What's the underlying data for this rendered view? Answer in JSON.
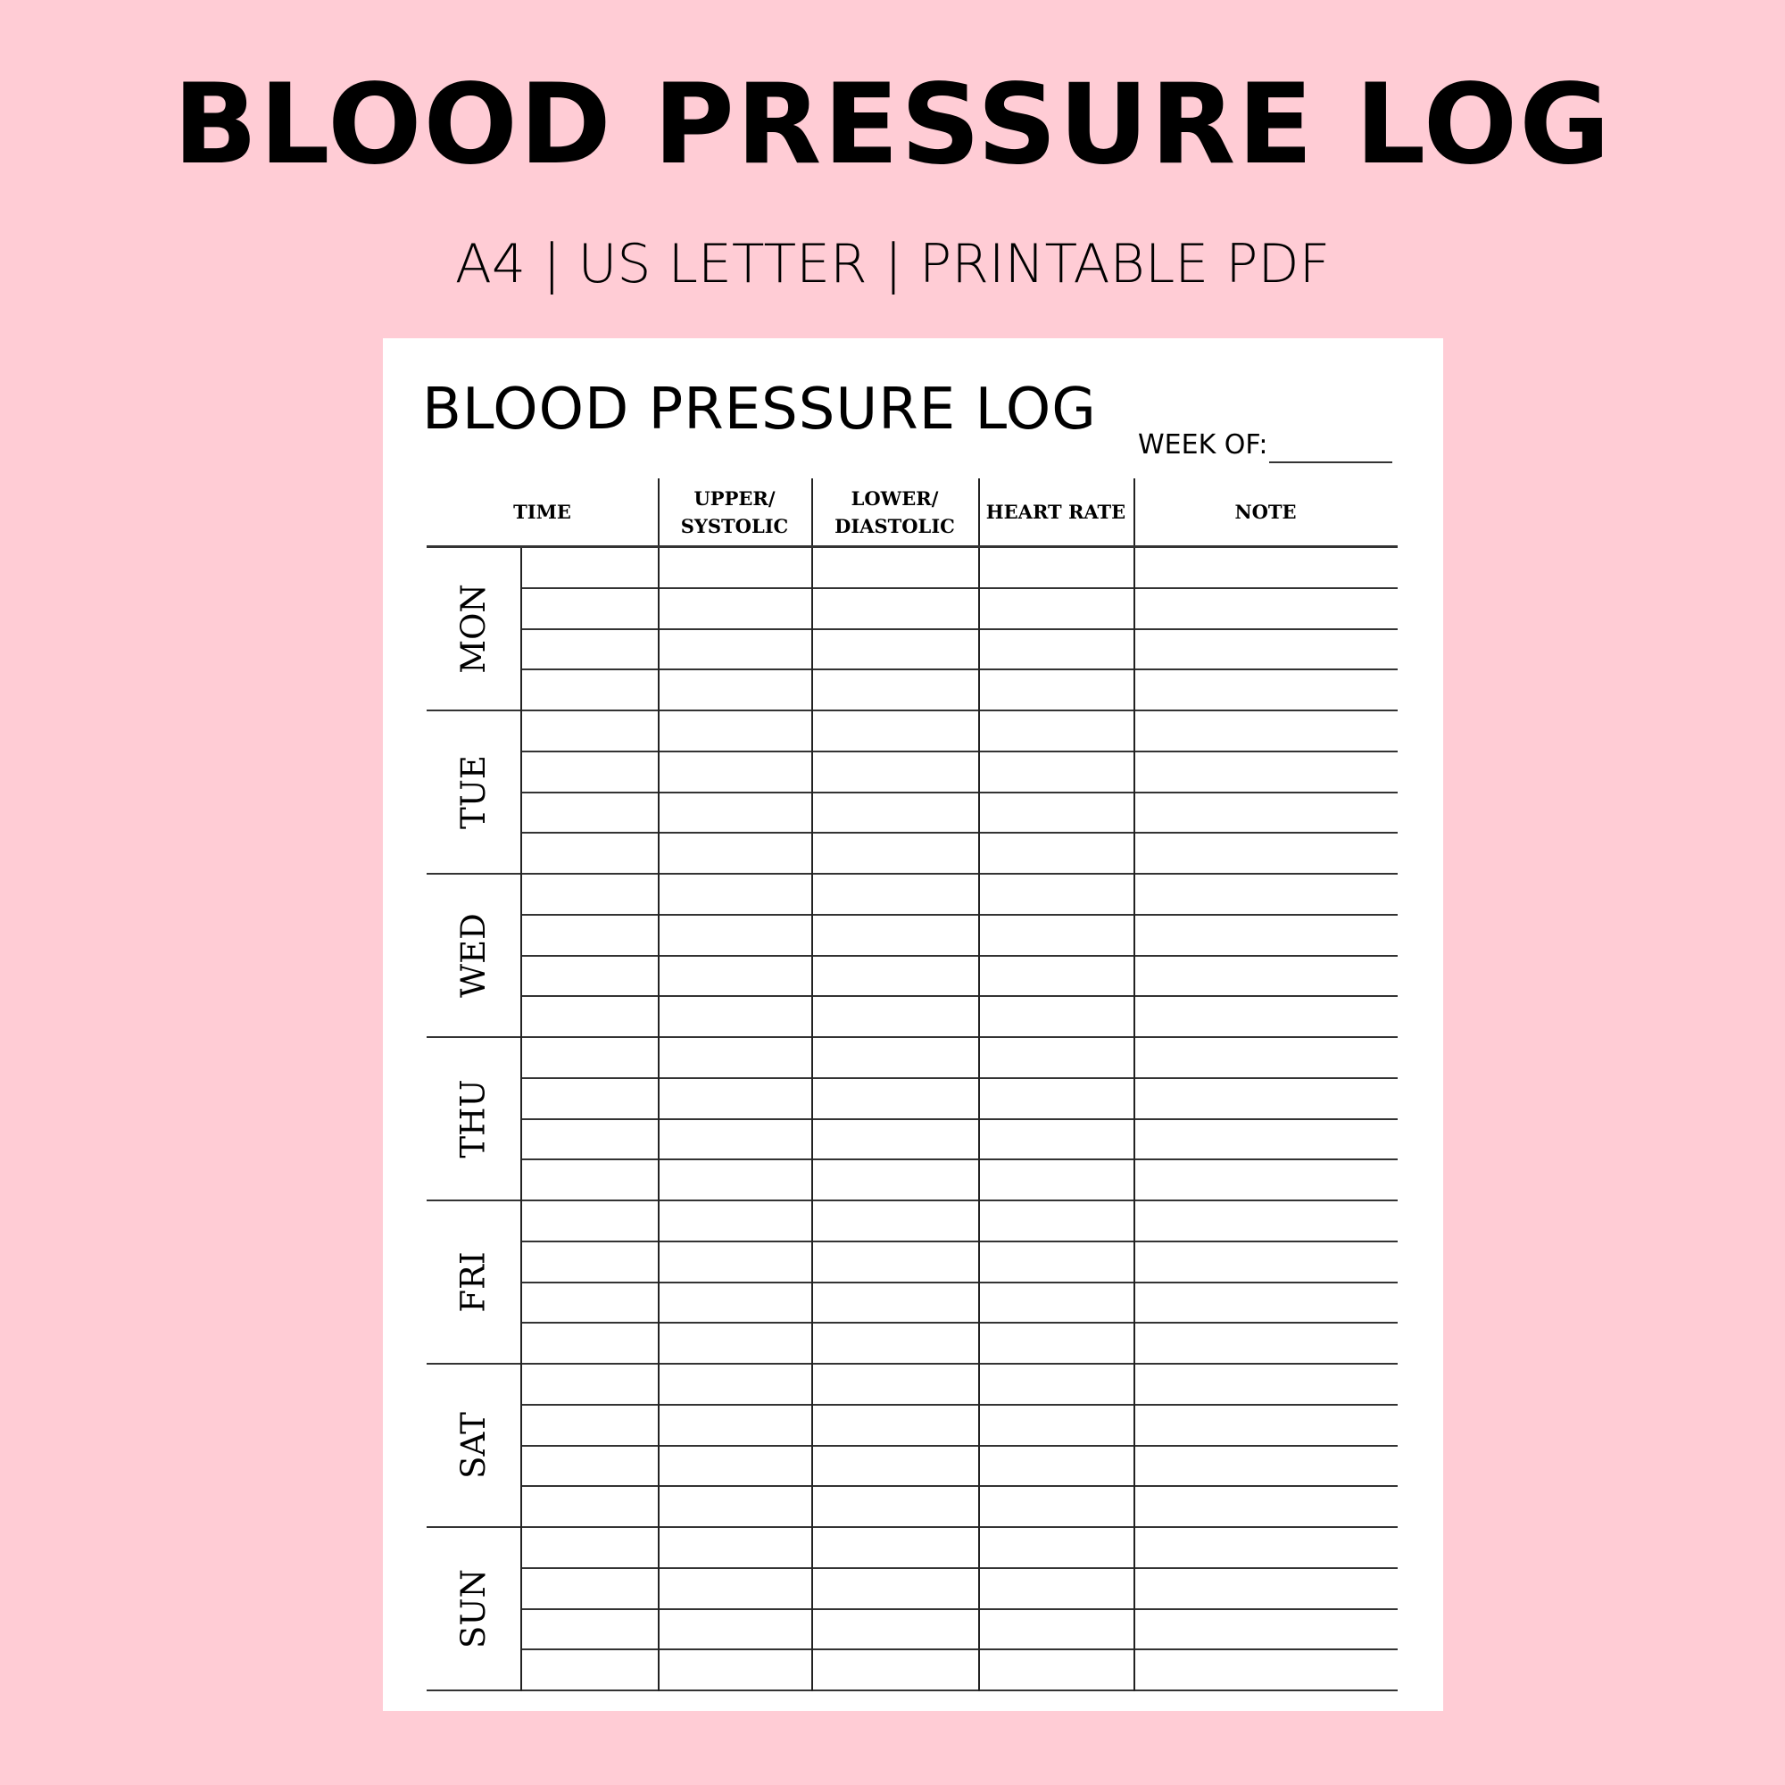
{
  "banner": {
    "title": "BLOOD PRESSURE LOG",
    "subtitle": "A4 | US LETTER | PRINTABLE PDF"
  },
  "colors": {
    "background": "#ffccd5",
    "page": "#ffffff",
    "lines": "#333333"
  },
  "sheet": {
    "title": "BLOOD PRESSURE LOG",
    "week_label": "WEEK OF:",
    "columns": [
      "TIME",
      "UPPER/ SYSTOLIC",
      "LOWER/ DIASTOLIC",
      "HEART RATE",
      "NOTE"
    ],
    "days": [
      "MON",
      "TUE",
      "WED",
      "THU",
      "FRI",
      "SAT",
      "SUN"
    ],
    "rows_per_day": 4
  }
}
